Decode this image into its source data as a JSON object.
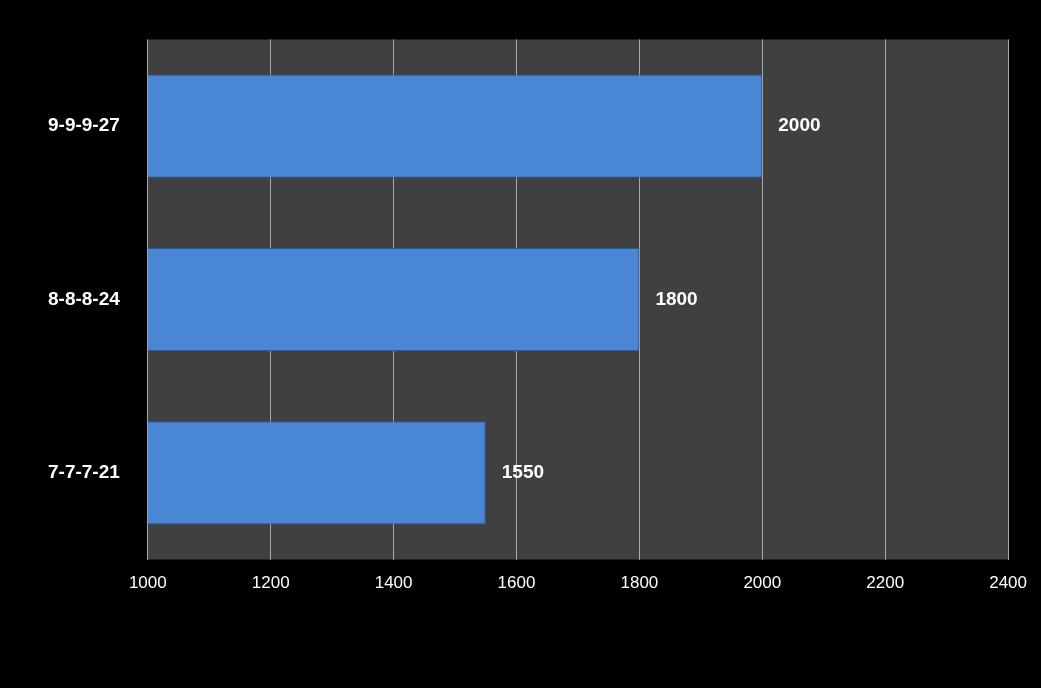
{
  "chart_data": {
    "type": "bar",
    "orientation": "horizontal",
    "categories": [
      "9-9-9-27",
      "8-8-8-24",
      "7-7-7-21"
    ],
    "series": [
      {
        "color": "#4a86d6",
        "values": [
          2000,
          1800,
          1550
        ]
      }
    ],
    "xlim": [
      1000,
      2400
    ],
    "xticks": [
      1000,
      1200,
      1400,
      1600,
      1800,
      2000,
      2200,
      2400
    ],
    "grid": "x",
    "data_labels": true,
    "legend": false
  }
}
